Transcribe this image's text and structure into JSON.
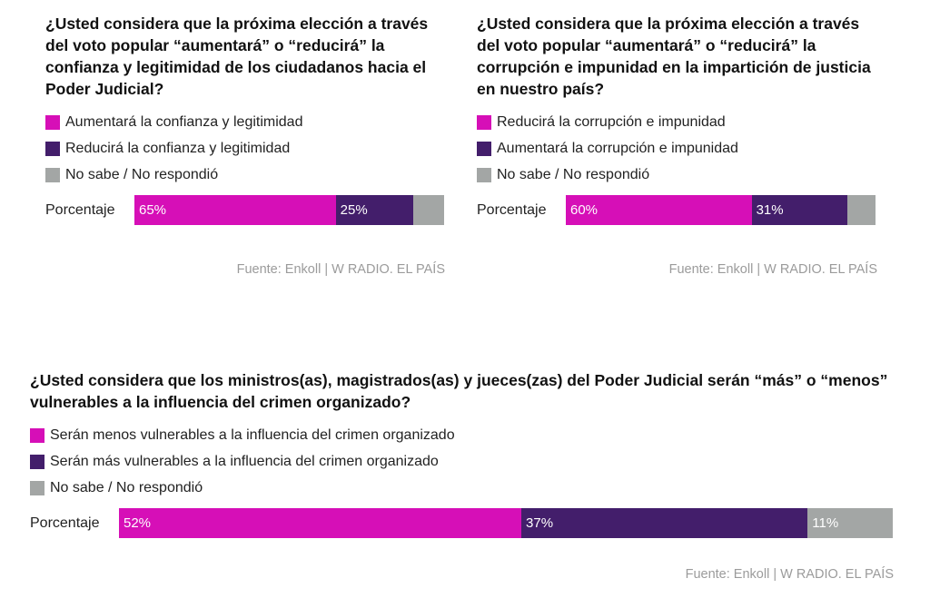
{
  "colors": {
    "magenta": "#d60fb7",
    "purple": "#431e6b",
    "gray": "#a3a6a5"
  },
  "chart_data": [
    {
      "type": "bar",
      "stacked": true,
      "orientation": "horizontal",
      "title": "¿Usted considera que la próxima elección a través del voto popular “aumentará” o “reducirá” la confianza y legitimidad de los ciudadanos hacia el Poder Judicial?",
      "categories": [
        "Porcentaje"
      ],
      "series": [
        {
          "name": "Aumentará la confianza y legitimidad",
          "values": [
            65
          ],
          "label": "65%",
          "color": "#d60fb7"
        },
        {
          "name": "Reducirá la confianza y legitimidad",
          "values": [
            25
          ],
          "label": "25%",
          "color": "#431e6b"
        },
        {
          "name": "No sabe / No respondió",
          "values": [
            10
          ],
          "label": "",
          "color": "#a3a6a5"
        }
      ],
      "source": "Fuente: Enkoll | W RADIO. EL PAÍS"
    },
    {
      "type": "bar",
      "stacked": true,
      "orientation": "horizontal",
      "title": "¿Usted considera que la próxima elección a través del voto popular “aumentará” o “reducirá” la corrupción e impunidad en la impartición de justicia en nuestro país?",
      "categories": [
        "Porcentaje"
      ],
      "series": [
        {
          "name": "Reducirá la corrupción e impunidad",
          "values": [
            60
          ],
          "label": "60%",
          "color": "#d60fb7"
        },
        {
          "name": "Aumentará la corrupción e impunidad",
          "values": [
            31
          ],
          "label": "31%",
          "color": "#431e6b"
        },
        {
          "name": "No sabe / No respondió",
          "values": [
            9
          ],
          "label": "",
          "color": "#a3a6a5"
        }
      ],
      "source": "Fuente: Enkoll | W RADIO. EL PAÍS"
    },
    {
      "type": "bar",
      "stacked": true,
      "orientation": "horizontal",
      "title": "¿Usted considera que los ministros(as), magistrados(as) y jueces(zas) del Poder Judicial serán “más” o “menos” vulnerables a la influencia del crimen organizado?",
      "categories": [
        "Porcentaje"
      ],
      "series": [
        {
          "name": "Serán menos vulnerables a la influencia del crimen organizado",
          "values": [
            52
          ],
          "label": "52%",
          "color": "#d60fb7"
        },
        {
          "name": "Serán más vulnerables a la influencia del crimen organizado",
          "values": [
            37
          ],
          "label": "37%",
          "color": "#431e6b"
        },
        {
          "name": "No sabe / No respondió",
          "values": [
            11
          ],
          "label": "11%",
          "color": "#a3a6a5"
        }
      ],
      "source": "Fuente: Enkoll | W RADIO. EL PAÍS"
    }
  ]
}
